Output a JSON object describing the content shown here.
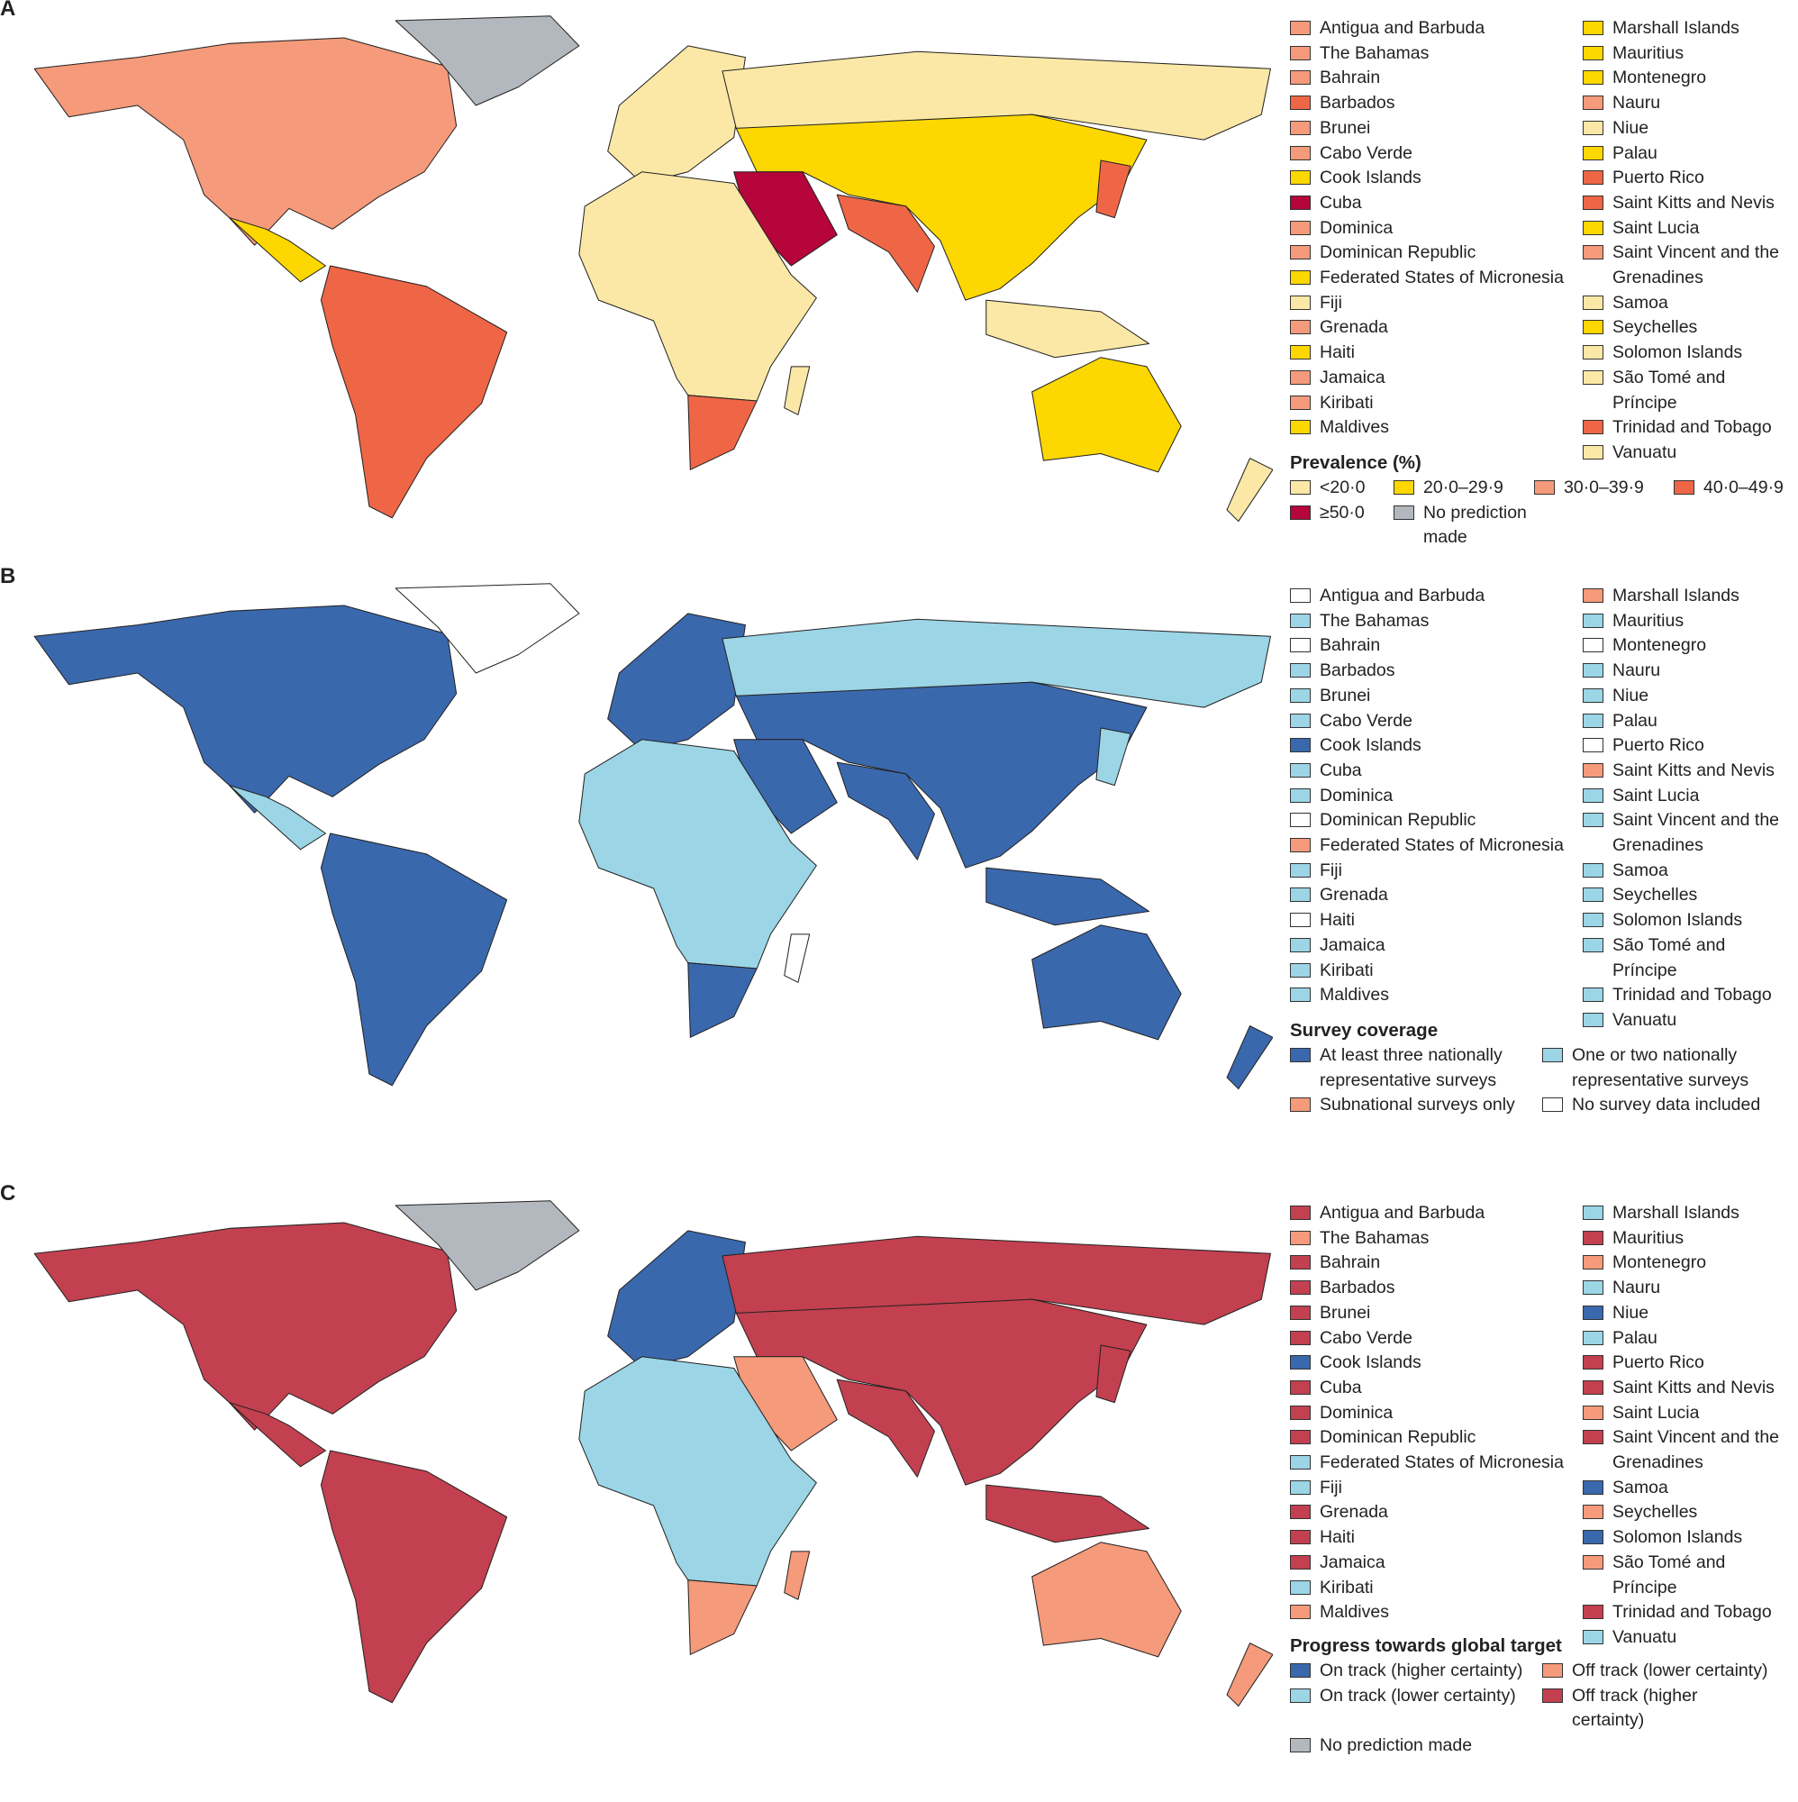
{
  "panels": [
    {
      "letter": "A",
      "categories": {
        "lt20": {
          "label": "<20·0",
          "color": "#fbe8a6"
        },
        "p20": {
          "label": "20·0–29·9",
          "color": "#fcd700"
        },
        "p30": {
          "label": "30·0–39·9",
          "color": "#f59a7a"
        },
        "p40": {
          "label": "40·0–49·9",
          "color": "#ee6646"
        },
        "ge50": {
          "label": "≥50·0",
          "color": "#b5053a"
        },
        "none": {
          "label": "No prediction made",
          "color": "#b3b8be"
        }
      },
      "key_title": "Prevalence (%)",
      "key_order": [
        "lt20",
        "p20",
        "p30",
        "p40",
        "ge50",
        "none"
      ],
      "countries_left": [
        [
          "Antigua and Barbuda",
          "p30"
        ],
        [
          "The Bahamas",
          "p30"
        ],
        [
          "Bahrain",
          "p30"
        ],
        [
          "Barbados",
          "p40"
        ],
        [
          "Brunei",
          "p30"
        ],
        [
          "Cabo Verde",
          "p30"
        ],
        [
          "Cook Islands",
          "p20"
        ],
        [
          "Cuba",
          "ge50"
        ],
        [
          "Dominica",
          "p30"
        ],
        [
          "Dominican Republic",
          "p30"
        ],
        [
          "Federated States of Micronesia",
          "p20"
        ],
        [
          "Fiji",
          "lt20"
        ],
        [
          "Grenada",
          "p30"
        ],
        [
          "Haiti",
          "p20"
        ],
        [
          "Jamaica",
          "p30"
        ],
        [
          "Kiribati",
          "p30"
        ],
        [
          "Maldives",
          "p20"
        ]
      ],
      "countries_right": [
        [
          "Marshall Islands",
          "p20"
        ],
        [
          "Mauritius",
          "p20"
        ],
        [
          "Montenegro",
          "p20"
        ],
        [
          "Nauru",
          "p30"
        ],
        [
          "Niue",
          "lt20"
        ],
        [
          "Palau",
          "p20"
        ],
        [
          "Puerto Rico",
          "p40"
        ],
        [
          "Saint Kitts and Nevis",
          "p40"
        ],
        [
          "Saint Lucia",
          "p20"
        ],
        [
          "Saint Vincent and the Grenadines",
          "p30"
        ],
        [
          "Samoa",
          "lt20"
        ],
        [
          "Seychelles",
          "p20"
        ],
        [
          "Solomon Islands",
          "lt20"
        ],
        [
          "São Tomé and Príncipe",
          "lt20"
        ],
        [
          "Trinidad and Tobago",
          "p40"
        ],
        [
          "Vanuatu",
          "lt20"
        ]
      ],
      "regions": {
        "north_america": "p30",
        "greenland": "none",
        "central_america": "p20",
        "south_america": "p40",
        "europe": "lt20",
        "north_asia": "lt20",
        "asia": "p20",
        "middle_east": "ge50",
        "south_asia": "p40",
        "africa": "lt20",
        "southern_africa": "p40",
        "madagascar": "lt20",
        "se_asia": "lt20",
        "australia": "p20",
        "new_zealand": "lt20",
        "japan": "p40"
      }
    },
    {
      "letter": "B",
      "categories": {
        "three": {
          "label": "At least three nationally representative surveys",
          "color": "#3a68ad"
        },
        "onetwo": {
          "label": "One or two nationally representative surveys",
          "color": "#9bd5e6"
        },
        "sub": {
          "label": "Subnational surveys only",
          "color": "#f59a7a"
        },
        "nodata": {
          "label": "No survey data included",
          "color": "#ffffff"
        }
      },
      "key_title": "Survey coverage",
      "key_order": [
        "three",
        "onetwo",
        "sub",
        "nodata"
      ],
      "countries_left": [
        [
          "Antigua and Barbuda",
          "nodata"
        ],
        [
          "The Bahamas",
          "onetwo"
        ],
        [
          "Bahrain",
          "nodata"
        ],
        [
          "Barbados",
          "onetwo"
        ],
        [
          "Brunei",
          "onetwo"
        ],
        [
          "Cabo Verde",
          "onetwo"
        ],
        [
          "Cook Islands",
          "three"
        ],
        [
          "Cuba",
          "onetwo"
        ],
        [
          "Dominica",
          "onetwo"
        ],
        [
          "Dominican Republic",
          "nodata"
        ],
        [
          "Federated States of Micronesia",
          "sub"
        ],
        [
          "Fiji",
          "onetwo"
        ],
        [
          "Grenada",
          "onetwo"
        ],
        [
          "Haiti",
          "nodata"
        ],
        [
          "Jamaica",
          "onetwo"
        ],
        [
          "Kiribati",
          "onetwo"
        ],
        [
          "Maldives",
          "onetwo"
        ]
      ],
      "countries_right": [
        [
          "Marshall Islands",
          "sub"
        ],
        [
          "Mauritius",
          "onetwo"
        ],
        [
          "Montenegro",
          "nodata"
        ],
        [
          "Nauru",
          "onetwo"
        ],
        [
          "Niue",
          "onetwo"
        ],
        [
          "Palau",
          "onetwo"
        ],
        [
          "Puerto Rico",
          "nodata"
        ],
        [
          "Saint Kitts and Nevis",
          "sub"
        ],
        [
          "Saint Lucia",
          "onetwo"
        ],
        [
          "Saint Vincent and the Grenadines",
          "onetwo"
        ],
        [
          "Samoa",
          "onetwo"
        ],
        [
          "Seychelles",
          "onetwo"
        ],
        [
          "Solomon Islands",
          "onetwo"
        ],
        [
          "São Tomé and Príncipe",
          "onetwo"
        ],
        [
          "Trinidad and Tobago",
          "onetwo"
        ],
        [
          "Vanuatu",
          "onetwo"
        ]
      ],
      "regions": {
        "north_america": "three",
        "greenland": "nodata",
        "central_america": "onetwo",
        "south_america": "three",
        "europe": "three",
        "north_asia": "onetwo",
        "asia": "three",
        "middle_east": "three",
        "south_asia": "three",
        "africa": "onetwo",
        "southern_africa": "three",
        "madagascar": "nodata",
        "se_asia": "three",
        "australia": "three",
        "new_zealand": "three",
        "japan": "onetwo"
      }
    },
    {
      "letter": "C",
      "categories": {
        "onH": {
          "label": "On track (higher certainty)",
          "color": "#3a68ad"
        },
        "offL": {
          "label": "Off track (lower certainty)",
          "color": "#f59a7a"
        },
        "onL": {
          "label": "On track (lower certainty)",
          "color": "#9bd5e6"
        },
        "offH": {
          "label": "Off track (higher certainty)",
          "color": "#c2404f"
        },
        "none": {
          "label": "No prediction made",
          "color": "#b3b8be"
        }
      },
      "key_title": "Progress towards global target",
      "key_order": [
        "onH",
        "offL",
        "onL",
        "offH",
        "none"
      ],
      "countries_left": [
        [
          "Antigua and Barbuda",
          "offH"
        ],
        [
          "The Bahamas",
          "offL"
        ],
        [
          "Bahrain",
          "offH"
        ],
        [
          "Barbados",
          "offH"
        ],
        [
          "Brunei",
          "offH"
        ],
        [
          "Cabo Verde",
          "offH"
        ],
        [
          "Cook Islands",
          "onH"
        ],
        [
          "Cuba",
          "offH"
        ],
        [
          "Dominica",
          "offH"
        ],
        [
          "Dominican Republic",
          "offH"
        ],
        [
          "Federated States of Micronesia",
          "onL"
        ],
        [
          "Fiji",
          "onL"
        ],
        [
          "Grenada",
          "offH"
        ],
        [
          "Haiti",
          "offH"
        ],
        [
          "Jamaica",
          "offH"
        ],
        [
          "Kiribati",
          "onL"
        ],
        [
          "Maldives",
          "offL"
        ]
      ],
      "countries_right": [
        [
          "Marshall Islands",
          "onL"
        ],
        [
          "Mauritius",
          "offH"
        ],
        [
          "Montenegro",
          "offL"
        ],
        [
          "Nauru",
          "onL"
        ],
        [
          "Niue",
          "onH"
        ],
        [
          "Palau",
          "onL"
        ],
        [
          "Puerto Rico",
          "offH"
        ],
        [
          "Saint Kitts and Nevis",
          "offH"
        ],
        [
          "Saint Lucia",
          "offL"
        ],
        [
          "Saint Vincent and the Grenadines",
          "offH"
        ],
        [
          "Samoa",
          "onH"
        ],
        [
          "Seychelles",
          "offL"
        ],
        [
          "Solomon Islands",
          "onH"
        ],
        [
          "São Tomé and Príncipe",
          "offL"
        ],
        [
          "Trinidad and Tobago",
          "offH"
        ],
        [
          "Vanuatu",
          "onL"
        ]
      ],
      "regions": {
        "north_america": "offH",
        "greenland": "none",
        "central_america": "offH",
        "south_america": "offH",
        "europe": "onH",
        "north_asia": "offH",
        "asia": "offH",
        "middle_east": "offL",
        "south_asia": "offH",
        "africa": "onL",
        "southern_africa": "offL",
        "madagascar": "offL",
        "se_asia": "offH",
        "australia": "offL",
        "new_zealand": "offL",
        "japan": "offH"
      }
    }
  ]
}
